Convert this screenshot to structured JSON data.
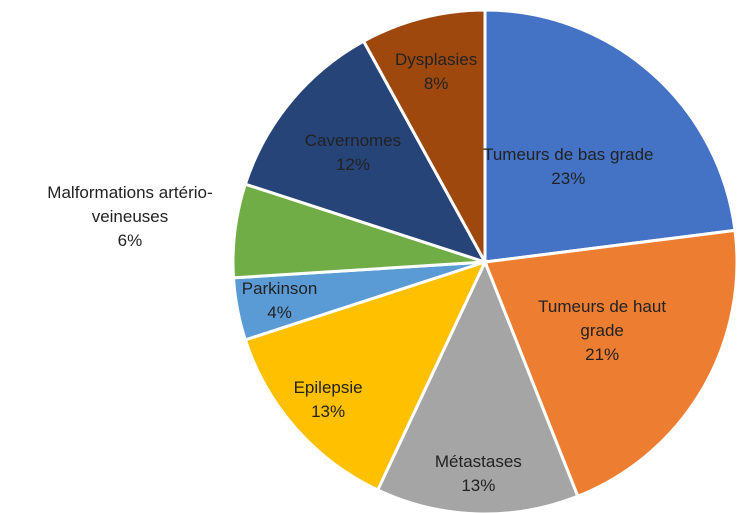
{
  "chart_data": {
    "type": "pie",
    "categories": [
      "Tumeurs de bas grade",
      "Tumeurs de haut grade",
      "Métastases",
      "Epilepsie",
      "Parkinson",
      "Malformations artério-veineuses",
      "Cavernomes",
      "Dysplasies"
    ],
    "values": [
      23,
      21,
      13,
      13,
      4,
      6,
      12,
      8
    ],
    "value_labels": [
      "23%",
      "21%",
      "13%",
      "13%",
      "4%",
      "6%",
      "12%",
      "8%"
    ],
    "colors": [
      "#4472c4",
      "#ed7d31",
      "#a5a5a5",
      "#ffc000",
      "#5b9bd5",
      "#70ad47",
      "#264478",
      "#9e480e"
    ]
  }
}
